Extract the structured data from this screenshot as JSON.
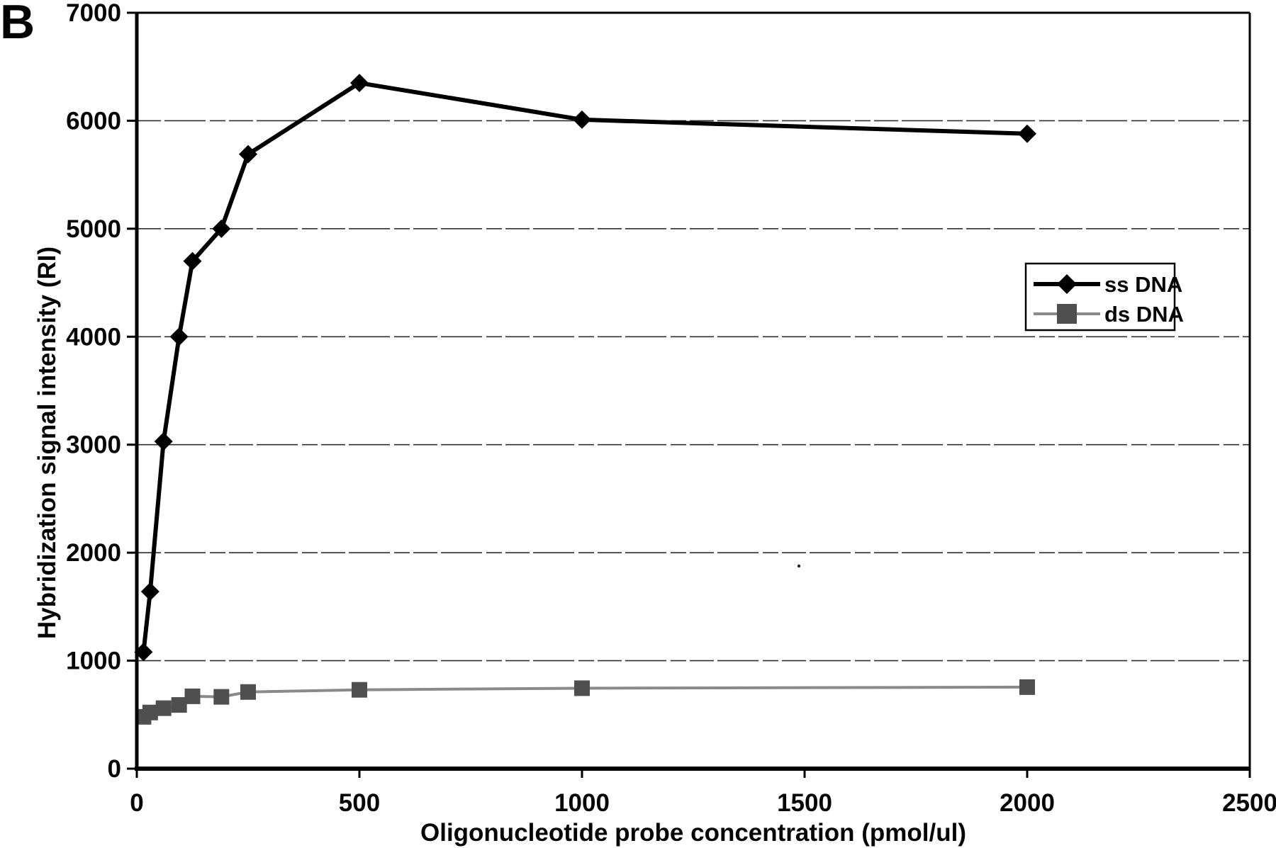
{
  "figure": {
    "panel_label": "B",
    "background": "#ffffff"
  },
  "chart_data": {
    "type": "line",
    "title": "",
    "xlabel": "Oligonucleotide probe concentration (pmol/ul)",
    "ylabel": "Hybridization signal intensity (RI)",
    "xlim": [
      0,
      2500
    ],
    "ylim": [
      0,
      7000
    ],
    "x_ticks": [
      0,
      500,
      1000,
      1500,
      2000,
      2500
    ],
    "y_ticks": [
      0,
      1000,
      2000,
      3000,
      4000,
      5000,
      6000,
      7000
    ],
    "grid": "horizontal-only",
    "legend_position": "inside-upper-right",
    "series": [
      {
        "name": "ss DNA",
        "marker": "diamond",
        "color": "#000000",
        "line_color": "#000000",
        "line_width": 6,
        "x": [
          15,
          30,
          60,
          95,
          125,
          190,
          250,
          500,
          1000,
          2000
        ],
        "y": [
          1080,
          1640,
          3030,
          4000,
          4700,
          5000,
          5690,
          6350,
          6010,
          5880
        ]
      },
      {
        "name": "ds DNA",
        "marker": "square",
        "color": "#4f4f4f",
        "line_color": "#8a8a8a",
        "line_width": 4,
        "x": [
          15,
          30,
          60,
          95,
          125,
          190,
          250,
          500,
          1000,
          2000
        ],
        "y": [
          480,
          520,
          560,
          590,
          670,
          665,
          710,
          730,
          745,
          755
        ]
      }
    ]
  }
}
